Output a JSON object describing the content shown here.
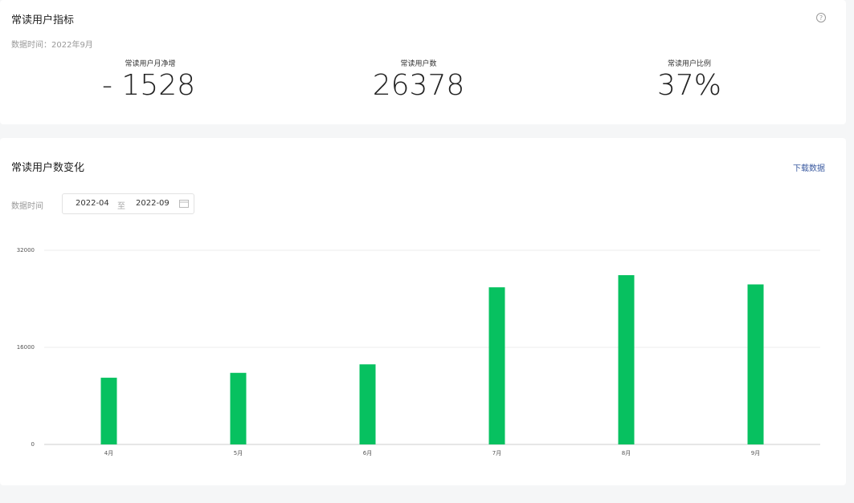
{
  "metrics_card": {
    "title": "常读用户指标",
    "data_time": "数据时间：2022年9月",
    "metrics": [
      {
        "label": "常读用户月净增",
        "value": "- 1528"
      },
      {
        "label": "常读用户数",
        "value": "26378"
      },
      {
        "label": "常读用户比例",
        "value": "37%"
      }
    ]
  },
  "trend_card": {
    "title": "常读用户数变化",
    "download": "下载数据",
    "date_label": "数据时间",
    "date_start": "2022-04",
    "date_separator": "至",
    "date_end": "2022-09"
  },
  "chart_data": {
    "type": "bar",
    "categories": [
      "4月",
      "5月",
      "6月",
      "7月",
      "8月",
      "9月"
    ],
    "values": [
      11000,
      11800,
      13200,
      25900,
      27900,
      26378
    ],
    "color": "#07c160",
    "ylim": [
      0,
      32000
    ],
    "yticks": [
      0,
      16000,
      32000
    ],
    "grid": true
  }
}
